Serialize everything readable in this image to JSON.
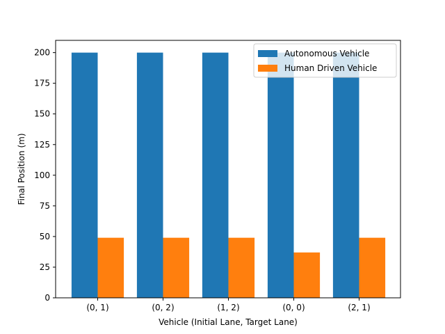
{
  "chart_data": {
    "type": "bar",
    "categories": [
      "(0, 1)",
      "(0, 2)",
      "(1, 2)",
      "(0, 0)",
      "(2, 1)"
    ],
    "series": [
      {
        "name": "Autonomous Vehicle",
        "values": [
          200,
          200,
          200,
          200,
          200
        ],
        "color": "#1f77b4"
      },
      {
        "name": "Human Driven Vehicle",
        "values": [
          49,
          49,
          49,
          37,
          49
        ],
        "color": "#ff7f0e"
      }
    ],
    "title": "",
    "xlabel": "Vehicle (Initial Lane, Target Lane)",
    "ylabel": "Final Position (m)",
    "ylim": [
      0,
      210
    ],
    "yticks": [
      0,
      25,
      50,
      75,
      100,
      125,
      150,
      175,
      200
    ],
    "grid": false,
    "legend_position": "top-right"
  }
}
